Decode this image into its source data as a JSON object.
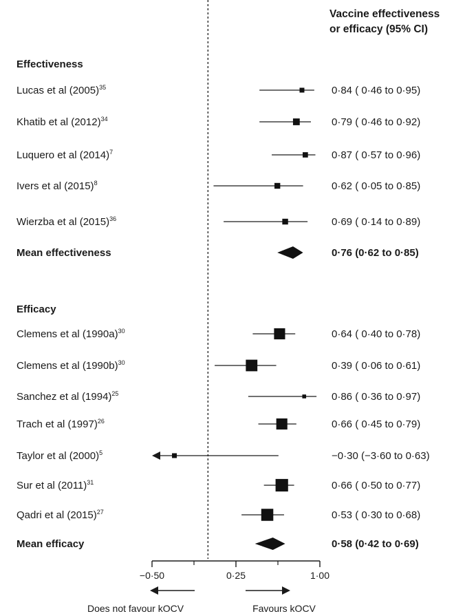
{
  "chart_data": {
    "type": "forest",
    "column_header": [
      "Vaccine effectiveness",
      "or efficacy (95% CI)"
    ],
    "x_ticks": [
      -0.5,
      0.25,
      1.0
    ],
    "x_tick_labels": [
      "−0·50",
      "0·25",
      "1·00"
    ],
    "x_range": [
      -0.5,
      1.0
    ],
    "reference_line": 0,
    "left_arrow_label": "Does not favour kOCV",
    "right_arrow_label": "Favours kOCV",
    "groups": [
      {
        "label": "Effectiveness",
        "studies": [
          {
            "name": "Lucas et al (2005)",
            "ref": "35",
            "est": 0.84,
            "lo": 0.46,
            "hi": 0.95,
            "ci_text": "0·84 ( 0·46 to 0·95)",
            "weight": 1
          },
          {
            "name": "Khatib et al (2012)",
            "ref": "34",
            "est": 0.79,
            "lo": 0.46,
            "hi": 0.92,
            "ci_text": "0·79 ( 0·46 to 0·92)",
            "weight": 1.4
          },
          {
            "name": "Luquero et al (2014)",
            "ref": "7",
            "est": 0.87,
            "lo": 0.57,
            "hi": 0.96,
            "ci_text": "0·87 ( 0·57 to 0·96)",
            "weight": 1.1
          },
          {
            "name": "Ivers et al (2015)",
            "ref": "8",
            "est": 0.62,
            "lo": 0.05,
            "hi": 0.85,
            "ci_text": "0·62 ( 0·05 to 0·85)",
            "weight": 1.2
          },
          {
            "name": "Wierzba et al (2015)",
            "ref": "36",
            "est": 0.69,
            "lo": 0.14,
            "hi": 0.89,
            "ci_text": "0·69 ( 0·14 to 0·89)",
            "weight": 1.2
          }
        ],
        "summary": {
          "name": "Mean effectiveness",
          "est": 0.76,
          "lo": 0.62,
          "hi": 0.85,
          "ci_text": "0·76 (0·62 to 0·85)"
        }
      },
      {
        "label": "Efficacy",
        "studies": [
          {
            "name": "Clemens et al (1990a)",
            "ref": "30",
            "est": 0.64,
            "lo": 0.4,
            "hi": 0.78,
            "ci_text": "0·64 ( 0·40 to 0·78)",
            "weight": 2.3
          },
          {
            "name": "Clemens et al (1990b)",
            "ref": "30",
            "est": 0.39,
            "lo": 0.06,
            "hi": 0.61,
            "ci_text": "0·39 ( 0·06 to 0·61)",
            "weight": 2.4
          },
          {
            "name": "Sanchez et al (1994)",
            "ref": "25",
            "est": 0.86,
            "lo": 0.36,
            "hi": 0.97,
            "ci_text": "0·86 ( 0·36 to 0·97)",
            "weight": 0.8
          },
          {
            "name": "Trach et al (1997)",
            "ref": "26",
            "est": 0.66,
            "lo": 0.45,
            "hi": 0.79,
            "ci_text": "0·66 ( 0·45 to 0·79)",
            "weight": 2.3
          },
          {
            "name": "Taylor et al (2000)",
            "ref": "5",
            "est": -0.3,
            "lo": -3.6,
            "hi": 0.63,
            "ci_text": "−0·30 (−3·60 to 0·63)",
            "weight": 1
          },
          {
            "name": "Sur et al (2011)",
            "ref": "31",
            "est": 0.66,
            "lo": 0.5,
            "hi": 0.77,
            "ci_text": "0·66 ( 0·50 to 0·77)",
            "weight": 2.6
          },
          {
            "name": "Qadri et al (2015)",
            "ref": "27",
            "est": 0.53,
            "lo": 0.3,
            "hi": 0.68,
            "ci_text": "0·53 ( 0·30 to 0·68)",
            "weight": 2.5
          }
        ],
        "summary": {
          "name": "Mean efficacy",
          "est": 0.58,
          "lo": 0.42,
          "hi": 0.69,
          "ci_text": "0·58 (0·42 to 0·69)"
        }
      }
    ]
  }
}
